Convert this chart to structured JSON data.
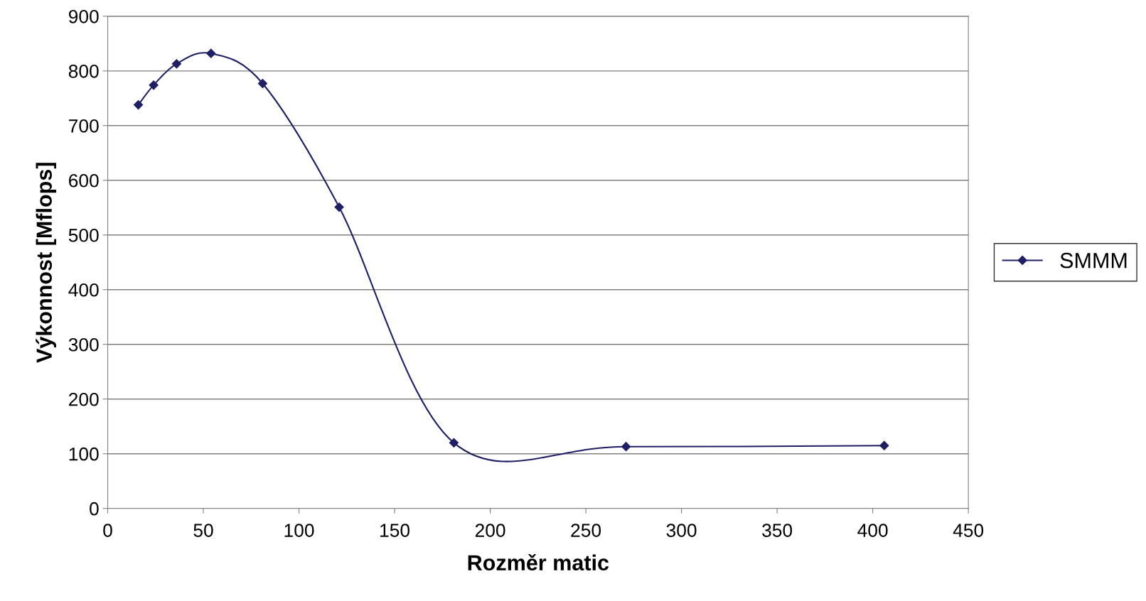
{
  "chart_data": {
    "type": "line",
    "xlabel": "Rozměr matic",
    "ylabel": "Výkonnost [Mflops]",
    "x": [
      16,
      24,
      36,
      54,
      81,
      121,
      181,
      271,
      406
    ],
    "series": [
      {
        "name": "SMMM",
        "color": "#1f1f66",
        "values": [
          738,
          774,
          813,
          832,
          777,
          551,
          120,
          113,
          115
        ]
      }
    ],
    "xlim": [
      0,
      450
    ],
    "xticks": [
      0,
      50,
      100,
      150,
      200,
      250,
      300,
      350,
      400,
      450
    ],
    "ylim": [
      0,
      900
    ],
    "yticks": [
      0,
      100,
      200,
      300,
      400,
      500,
      600,
      700,
      800,
      900
    ],
    "grid": "y",
    "legend": "right",
    "marker": "diamond",
    "line_style": "solid"
  }
}
